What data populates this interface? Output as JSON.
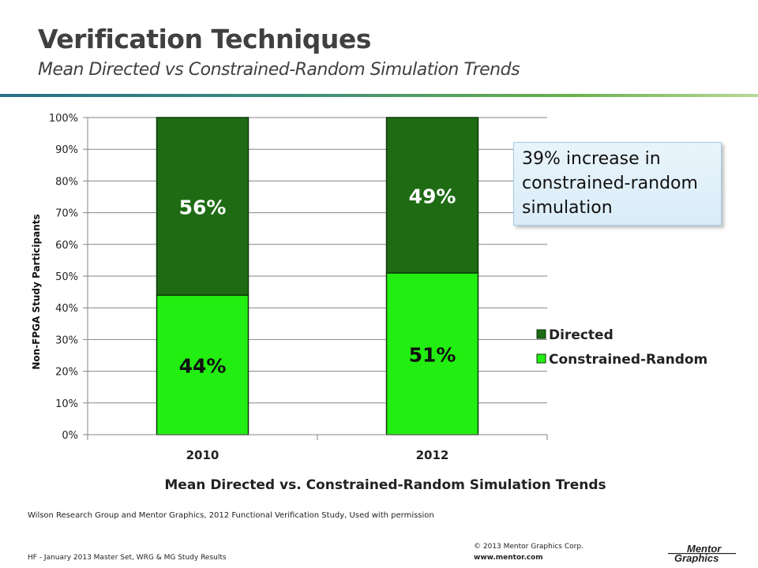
{
  "slide": {
    "title": "Verification Techniques",
    "subtitle": "Mean Directed vs Constrained-Random Simulation Trends",
    "callout": "39% increase in constrained-random simulation",
    "source": "Wilson Research Group and Mentor Graphics, 2012 Functional Verification Study,   Used with permission",
    "footer_left": "HF - January 2013 Master Set, WRG & MG Study Results",
    "copyright": "© 2013 Mentor Graphics Corp.",
    "website": "www.mentor.com",
    "logo_text": "Mentor Graphics"
  },
  "chart_data": {
    "type": "bar",
    "stacked": true,
    "categories": [
      "2010",
      "2012"
    ],
    "series": [
      {
        "name": "Constrained-Random",
        "values": [
          44,
          51
        ],
        "labels": [
          "44%",
          "51%"
        ],
        "color": "#22ee11"
      },
      {
        "name": "Directed",
        "values": [
          56,
          49
        ],
        "labels": [
          "56%",
          "49%"
        ],
        "color": "#1e6b14"
      }
    ],
    "legend_order": [
      "Directed",
      "Constrained-Random"
    ],
    "legend_position": "right",
    "xlabel": "Mean Directed vs. Constrained-Random  Simulation  Trends",
    "ylabel": "Non-FPGA Study Participants",
    "ylim": [
      0,
      100
    ],
    "yticks": [
      "0%",
      "10%",
      "20%",
      "30%",
      "40%",
      "50%",
      "60%",
      "70%",
      "80%",
      "90%",
      "100%"
    ],
    "grid": true,
    "colors": {
      "directed": "#1e6b14",
      "constrained_random": "#22ee11",
      "grid": "#868686"
    }
  }
}
